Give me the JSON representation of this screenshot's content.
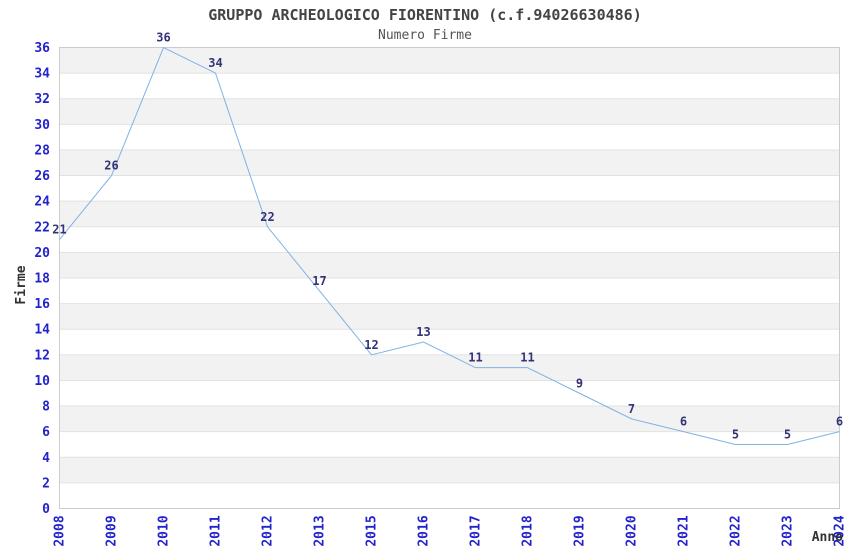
{
  "chart_data": {
    "type": "line",
    "title": "GRUPPO ARCHEOLOGICO FIORENTINO (c.f.94026630486)",
    "subtitle": "Numero Firme",
    "xlabel": "Anno",
    "ylabel": "Firme",
    "categories": [
      "2008",
      "2009",
      "2010",
      "2011",
      "2012",
      "2013",
      "2015",
      "2016",
      "2017",
      "2018",
      "2019",
      "2020",
      "2021",
      "2022",
      "2023",
      "2024"
    ],
    "values": [
      21,
      26,
      36,
      34,
      22,
      17,
      12,
      13,
      11,
      11,
      9,
      7,
      6,
      5,
      5,
      6
    ],
    "ylim": [
      0,
      36
    ],
    "ytick_step": 2,
    "grid": true,
    "legend": "none",
    "band_pattern": "alternating horizontal bands of 2 units, gray on 2-4, 6-8, ... 34-36",
    "colors": {
      "line": "#7fb2e5",
      "tick_label": "#2323cc",
      "data_label": "#333377",
      "band_fill": "#f2f2f2",
      "gridline": "#e2e2e2",
      "plot_border": "#cccccc",
      "title": "#444444",
      "subtitle": "#555555",
      "axis_label": "#333333",
      "background": "#ffffff"
    }
  }
}
